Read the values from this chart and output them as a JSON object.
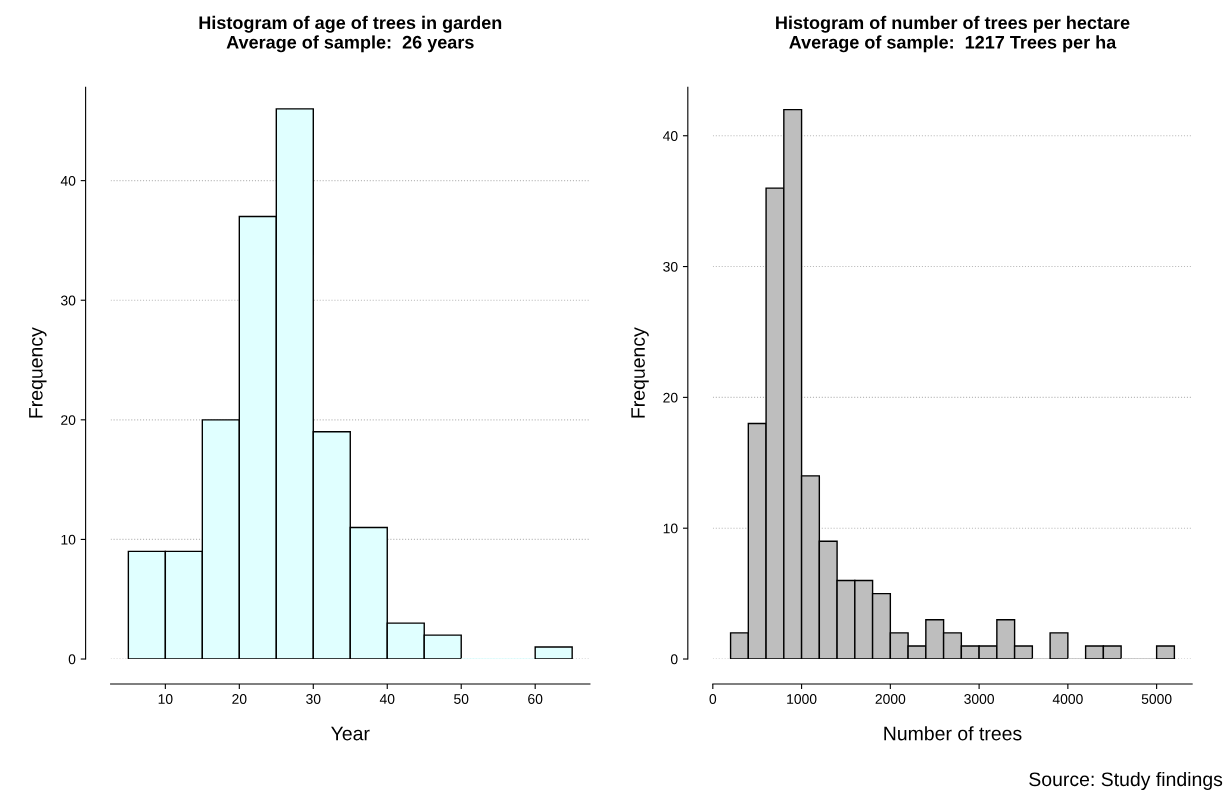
{
  "chart_data": [
    {
      "type": "histogram",
      "title": "Histogram of age of trees in garden\nAverage of sample:  26 years",
      "xlabel": "Year",
      "ylabel": "Frequency",
      "bins": [
        5,
        10,
        15,
        20,
        25,
        30,
        35,
        40,
        45,
        50,
        55,
        60,
        65
      ],
      "values": [
        9,
        9,
        20,
        37,
        46,
        19,
        11,
        3,
        2,
        0,
        0,
        1
      ],
      "color": "#e0ffff",
      "xlim": [
        2.6,
        67.4
      ],
      "xticks": [
        10,
        20,
        30,
        40,
        50,
        60
      ],
      "ylim": [
        0,
        47.8
      ],
      "yticks": [
        0,
        10,
        20,
        30,
        40
      ],
      "grid": "y"
    },
    {
      "type": "histogram",
      "title": "Histogram of number of trees per hectare\nAverage of sample:  1217 Trees per ha",
      "xlabel": "Number of trees",
      "ylabel": "Frequency",
      "bins": [
        200,
        400,
        600,
        800,
        1000,
        1200,
        1400,
        1600,
        1800,
        2000,
        2200,
        2400,
        2600,
        2800,
        3000,
        3200,
        3400,
        3600,
        3800,
        4000,
        4200,
        4400,
        4600,
        4800,
        5000,
        5200
      ],
      "values": [
        2,
        18,
        36,
        42,
        14,
        9,
        6,
        6,
        5,
        2,
        1,
        3,
        2,
        1,
        1,
        3,
        1,
        0,
        2,
        0,
        1,
        1,
        0,
        0,
        1
      ],
      "color": "#bebebe",
      "xlim": [
        0,
        5400
      ],
      "xticks": [
        0,
        1000,
        2000,
        3000,
        4000,
        5000
      ],
      "ylim": [
        0,
        43.7
      ],
      "yticks": [
        0,
        10,
        20,
        30,
        40
      ],
      "grid": "y",
      "annotations": [
        "Source: Study findings"
      ]
    }
  ]
}
